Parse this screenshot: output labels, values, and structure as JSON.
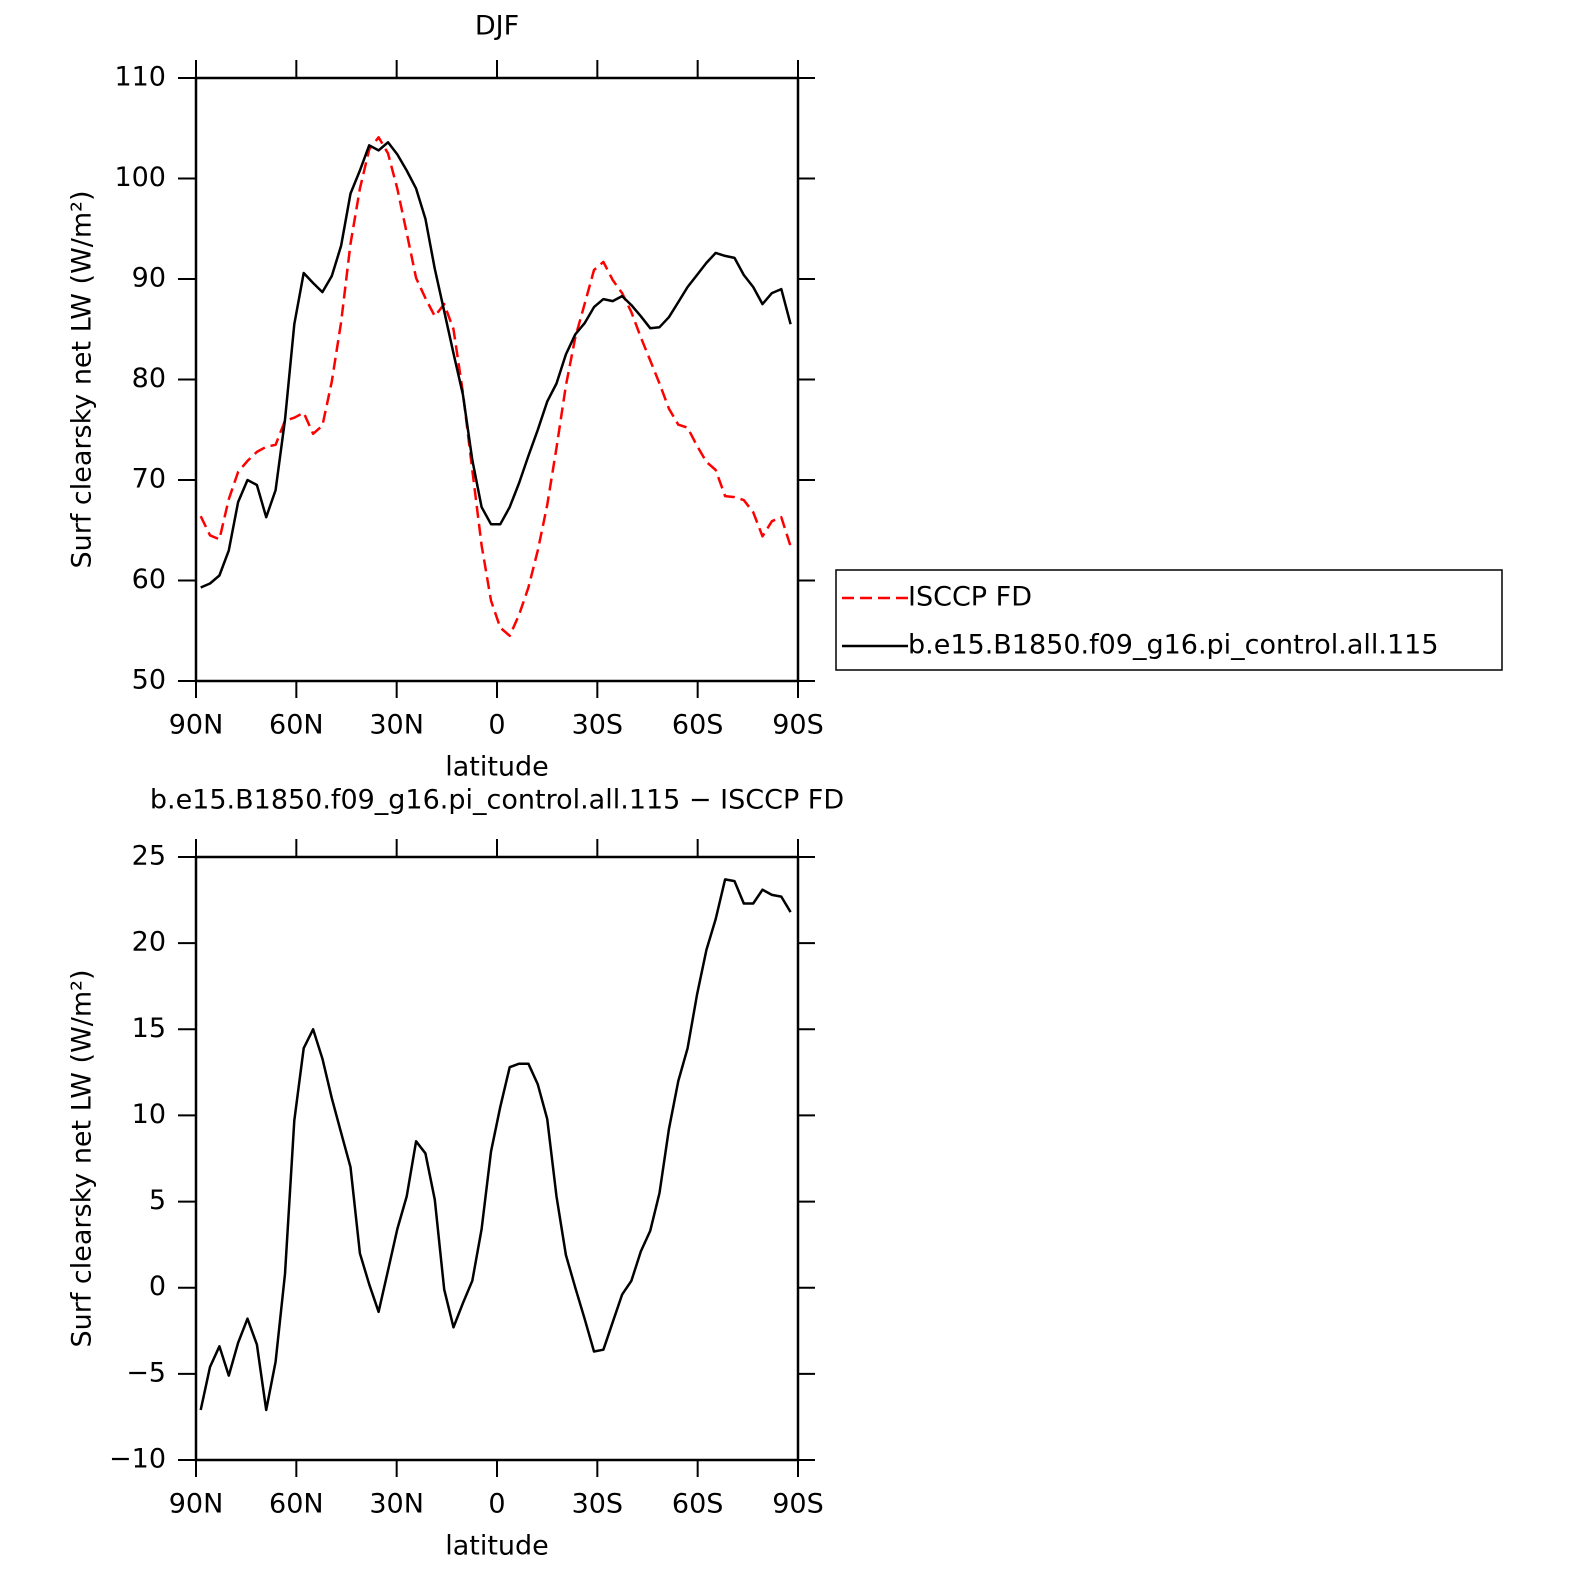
{
  "chart_data": [
    {
      "type": "line",
      "title": "DJF",
      "xlabel": "latitude",
      "ylabel": "Surf clearsky net LW (W/m²)",
      "xlim": [
        90,
        -90
      ],
      "ylim": [
        50,
        110
      ],
      "xticks": [
        {
          "value": 90,
          "label": "90N"
        },
        {
          "value": 60,
          "label": "60N"
        },
        {
          "value": 30,
          "label": "30N"
        },
        0,
        {
          "value": -30,
          "label": "30S"
        },
        {
          "value": -60,
          "label": "60S"
        },
        {
          "value": -90,
          "label": "90S"
        }
      ],
      "yticks": [
        50,
        60,
        70,
        80,
        90,
        100,
        110
      ],
      "legend": "right",
      "x": [
        88.6,
        85.8,
        83.0,
        80.2,
        77.4,
        74.6,
        71.8,
        69.0,
        66.2,
        63.4,
        60.6,
        57.8,
        55.0,
        52.2,
        49.4,
        46.6,
        43.8,
        41.0,
        38.2,
        35.4,
        32.6,
        29.8,
        27.0,
        24.2,
        21.4,
        18.6,
        15.8,
        13.0,
        10.2,
        7.4,
        4.6,
        1.8,
        -1.0,
        -3.8,
        -6.6,
        -9.4,
        -12.2,
        -15.0,
        -17.8,
        -20.6,
        -23.4,
        -26.2,
        -29.0,
        -31.8,
        -34.6,
        -37.4,
        -40.2,
        -43.0,
        -45.8,
        -48.6,
        -51.4,
        -54.2,
        -57.0,
        -59.8,
        -62.6,
        -65.4,
        -68.2,
        -71.0,
        -73.8,
        -76.6,
        -79.4,
        -82.2,
        -85.0,
        -87.8
      ],
      "series": [
        {
          "name": "ISCCP FD",
          "color": "#ff0000",
          "linestyle": "dashed",
          "values": [
            66.4,
            64.5,
            64.1,
            68.1,
            70.8,
            71.9,
            72.8,
            73.3,
            73.5,
            75.9,
            76.2,
            76.7,
            74.6,
            75.4,
            79.8,
            85.7,
            93.5,
            99,
            102.9,
            104.1,
            102.5,
            99,
            94.6,
            90.1,
            88.1,
            86.3,
            87.5,
            85,
            78.7,
            71,
            63.5,
            58,
            55.3,
            54.5,
            56.6,
            59.3,
            63,
            67.5,
            73.2,
            79.4,
            84.2,
            87.5,
            90.9,
            91.7,
            89.9,
            88.6,
            86.7,
            84.2,
            81.9,
            79.6,
            77.1,
            75.5,
            75.2,
            73.4,
            71.8,
            71.0,
            68.4,
            68.3,
            68.0,
            66.8,
            64.4,
            65.9,
            66.3,
            63.4
          ]
        },
        {
          "name": "b.e15.B1850.f09_g16.pi_control.all.115",
          "color": "#000000",
          "linestyle": "solid",
          "values": [
            59.3,
            59.7,
            60.5,
            63,
            67.8,
            70.0,
            69.5,
            66.3,
            69,
            76,
            85.5,
            90.6,
            89.6,
            88.7,
            90.3,
            93.3,
            98.5,
            100.8,
            103.3,
            102.8,
            103.6,
            102.4,
            100.8,
            99,
            96,
            91,
            86.8,
            82.6,
            78.5,
            72,
            67.3,
            65.6,
            65.6,
            67.3,
            69.7,
            72.4,
            75,
            77.8,
            79.6,
            82.5,
            84.5,
            85.6,
            87.2,
            88,
            87.8,
            88.3,
            87.4,
            86.3,
            85.1,
            85.2,
            86.2,
            87.7,
            89.2,
            90.4,
            91.6,
            92.6,
            92.3,
            92.1,
            90.4,
            89.2,
            87.5,
            88.6,
            89,
            85.5
          ]
        }
      ]
    },
    {
      "type": "line",
      "title": "b.e15.B1850.f09_g16.pi_control.all.115 − ISCCP FD",
      "xlabel": "latitude",
      "ylabel": "Surf clearsky net LW (W/m²)",
      "xlim": [
        90,
        -90
      ],
      "ylim": [
        -10,
        25
      ],
      "xticks": [
        {
          "value": 90,
          "label": "90N"
        },
        {
          "value": 60,
          "label": "60N"
        },
        {
          "value": 30,
          "label": "30N"
        },
        0,
        {
          "value": -30,
          "label": "30S"
        },
        {
          "value": -60,
          "label": "60S"
        },
        {
          "value": -90,
          "label": "90S"
        }
      ],
      "yticks": [
        {
          "value": -10,
          "label": "−10"
        },
        {
          "value": -5,
          "label": "−5"
        },
        0,
        5,
        10,
        15,
        20,
        25
      ],
      "x": [
        88.6,
        85.8,
        83.0,
        80.2,
        77.4,
        74.6,
        71.8,
        69.0,
        66.2,
        63.4,
        60.6,
        57.8,
        55.0,
        52.2,
        49.4,
        46.6,
        43.8,
        41.0,
        38.2,
        35.4,
        32.6,
        29.8,
        27.0,
        24.2,
        21.4,
        18.6,
        15.8,
        13.0,
        10.2,
        7.4,
        4.6,
        1.8,
        -1.0,
        -3.8,
        -6.6,
        -9.4,
        -12.2,
        -15.0,
        -17.8,
        -20.6,
        -23.4,
        -26.2,
        -29.0,
        -31.8,
        -34.6,
        -37.4,
        -40.2,
        -43.0,
        -45.8,
        -48.6,
        -51.4,
        -54.2,
        -57.0,
        -59.8,
        -62.6,
        -65.4,
        -68.2,
        -71.0,
        -73.8,
        -76.6,
        -79.4,
        -82.2,
        -85.0,
        -87.8
      ],
      "series": [
        {
          "color": "#000000",
          "linestyle": "solid",
          "values": [
            -7.1,
            -4.6,
            -3.4,
            -5.1,
            -3.2,
            -1.8,
            -3.3,
            -7.1,
            -4.3,
            0.8,
            9.7,
            13.9,
            15.0,
            13.3,
            11,
            9,
            7.0,
            2.0,
            0.2,
            -1.4,
            1.0,
            3.4,
            5.3,
            8.5,
            7.8,
            5.1,
            -0.1,
            -2.3,
            -0.9,
            0.4,
            3.4,
            7.9,
            10.5,
            12.8,
            13.0,
            13.0,
            11.8,
            9.8,
            5.3,
            1.9,
            0,
            -1.8,
            -3.7,
            -3.6,
            -2,
            -0.4,
            0.4,
            2.1,
            3.3,
            5.5,
            9.2,
            12.0,
            13.9,
            17,
            19.6,
            21.4,
            23.7,
            23.6,
            22.3,
            22.3,
            23.1,
            22.8,
            22.7,
            21.8
          ]
        }
      ]
    }
  ]
}
